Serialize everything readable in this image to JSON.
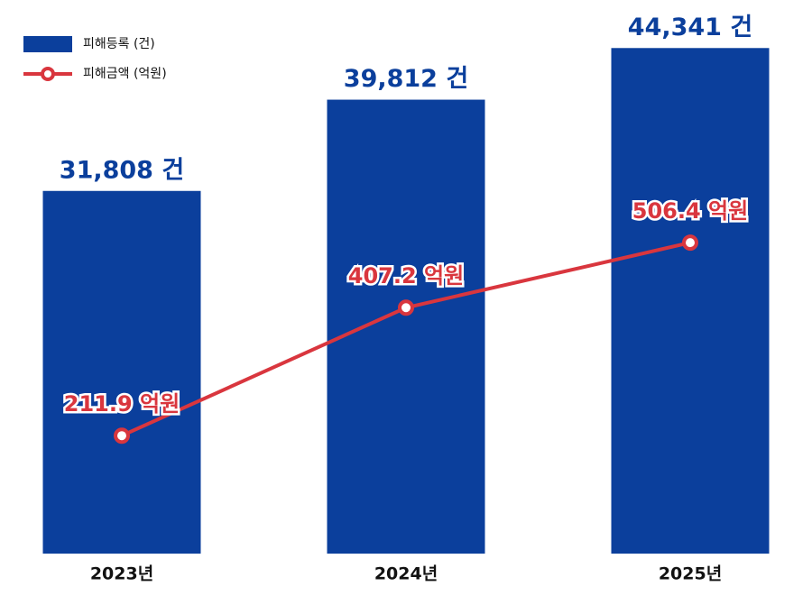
{
  "chart_data": {
    "type": "bar",
    "categories": [
      "2023년",
      "2024년",
      "2025년"
    ],
    "series": [
      {
        "name": "피해등록 (건)",
        "color": "#0b3f9c",
        "values": [
          31808,
          39812,
          44341
        ],
        "value_labels": [
          "31,808 건",
          "39,812 건",
          "44,341 건"
        ]
      },
      {
        "name": "피해금액 (억원)",
        "color": "#d9363e",
        "type": "line",
        "axis": "y2",
        "values": [
          211.9,
          407.2,
          506.4
        ],
        "value_labels": [
          "211.9 억원",
          "407.2 억원",
          "506.4 억원"
        ]
      }
    ],
    "ylim": [
      0,
      48000
    ],
    "y2lim": [
      32,
      867
    ],
    "legend": "top-left"
  }
}
